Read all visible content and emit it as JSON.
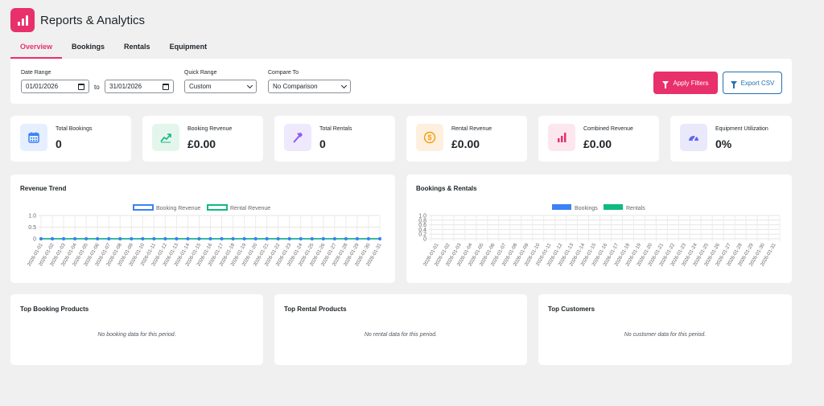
{
  "header": {
    "title": "Reports & Analytics"
  },
  "tabs": [
    "Overview",
    "Bookings",
    "Rentals",
    "Equipment"
  ],
  "filters": {
    "date_range_label": "Date Range",
    "date_from": "01/01/2026",
    "to_label": "to",
    "date_to": "31/01/2026",
    "quick_range_label": "Quick Range",
    "quick_range_value": "Custom",
    "compare_label": "Compare To",
    "compare_value": "No Comparison",
    "apply_label": "Apply Filters",
    "export_label": "Export CSV"
  },
  "stats": [
    {
      "label": "Total Bookings",
      "value": "0",
      "icon": "calendar-icon",
      "bg": "#e5efff",
      "color": "#3b82f6"
    },
    {
      "label": "Booking Revenue",
      "value": "£0.00",
      "icon": "trending-up-icon",
      "bg": "#e4f6ec",
      "color": "#10b981"
    },
    {
      "label": "Total Rentals",
      "value": "0",
      "icon": "hammer-icon",
      "bg": "#efe9fd",
      "color": "#8b5cf6"
    },
    {
      "label": "Rental Revenue",
      "value": "£0.00",
      "icon": "coin-icon",
      "bg": "#fdf0df",
      "color": "#f59e0b"
    },
    {
      "label": "Combined Revenue",
      "value": "£0.00",
      "icon": "bar-chart-icon",
      "bg": "#fde7ee",
      "color": "#e8306b"
    },
    {
      "label": "Equipment Utilization",
      "value": "0%",
      "icon": "gauge-icon",
      "bg": "#e9e9fb",
      "color": "#6366f1"
    }
  ],
  "charts": {
    "revenue_trend_title": "Revenue Trend",
    "bookings_rentals_title": "Bookings & Rentals"
  },
  "chart_data": [
    {
      "type": "line",
      "title": "Revenue Trend",
      "x": [
        "2026-01-01",
        "2026-01-02",
        "2026-01-03",
        "2026-01-04",
        "2026-01-05",
        "2026-01-06",
        "2026-01-07",
        "2026-01-08",
        "2026-01-09",
        "2026-01-10",
        "2026-01-11",
        "2026-01-12",
        "2026-01-13",
        "2026-01-14",
        "2026-01-15",
        "2026-01-16",
        "2026-01-17",
        "2026-01-18",
        "2026-01-19",
        "2026-01-20",
        "2026-01-21",
        "2026-01-22",
        "2026-01-23",
        "2026-01-24",
        "2026-01-25",
        "2026-01-26",
        "2026-01-27",
        "2026-01-28",
        "2026-01-29",
        "2026-01-30",
        "2026-01-31"
      ],
      "series": [
        {
          "name": "Booking Revenue",
          "color": "#3b82f6",
          "values": [
            0,
            0,
            0,
            0,
            0,
            0,
            0,
            0,
            0,
            0,
            0,
            0,
            0,
            0,
            0,
            0,
            0,
            0,
            0,
            0,
            0,
            0,
            0,
            0,
            0,
            0,
            0,
            0,
            0,
            0,
            0
          ]
        },
        {
          "name": "Rental Revenue",
          "color": "#10b981",
          "values": [
            0,
            0,
            0,
            0,
            0,
            0,
            0,
            0,
            0,
            0,
            0,
            0,
            0,
            0,
            0,
            0,
            0,
            0,
            0,
            0,
            0,
            0,
            0,
            0,
            0,
            0,
            0,
            0,
            0,
            0,
            0
          ]
        }
      ],
      "y_ticks": [
        "1.0",
        "0.5",
        "0"
      ],
      "ylim": [
        0,
        1
      ],
      "legend": "top-center",
      "grid": true
    },
    {
      "type": "bar",
      "title": "Bookings & Rentals",
      "x": [
        "2026-01-01",
        "2026-01-02",
        "2026-01-03",
        "2026-01-04",
        "2026-01-05",
        "2026-01-06",
        "2026-01-07",
        "2026-01-08",
        "2026-01-09",
        "2026-01-10",
        "2026-01-11",
        "2026-01-12",
        "2026-01-13",
        "2026-01-14",
        "2026-01-15",
        "2026-01-16",
        "2026-01-17",
        "2026-01-18",
        "2026-01-19",
        "2026-01-20",
        "2026-01-21",
        "2026-01-22",
        "2026-01-23",
        "2026-01-24",
        "2026-01-25",
        "2026-01-26",
        "2026-01-27",
        "2026-01-28",
        "2026-01-29",
        "2026-01-30",
        "2026-01-31"
      ],
      "series": [
        {
          "name": "Bookings",
          "color": "#3b82f6",
          "values": [
            0,
            0,
            0,
            0,
            0,
            0,
            0,
            0,
            0,
            0,
            0,
            0,
            0,
            0,
            0,
            0,
            0,
            0,
            0,
            0,
            0,
            0,
            0,
            0,
            0,
            0,
            0,
            0,
            0,
            0,
            0
          ]
        },
        {
          "name": "Rentals",
          "color": "#10b981",
          "values": [
            0,
            0,
            0,
            0,
            0,
            0,
            0,
            0,
            0,
            0,
            0,
            0,
            0,
            0,
            0,
            0,
            0,
            0,
            0,
            0,
            0,
            0,
            0,
            0,
            0,
            0,
            0,
            0,
            0,
            0,
            0
          ]
        }
      ],
      "y_ticks": [
        "1.0",
        "0.8",
        "0.6",
        "0.4",
        "0.2",
        "0"
      ],
      "ylim": [
        0,
        1
      ],
      "legend": "top-center",
      "grid": true
    }
  ],
  "lists": [
    {
      "title": "Top Booking Products",
      "empty": "No booking data for this period."
    },
    {
      "title": "Top Rental Products",
      "empty": "No rental data for this period."
    },
    {
      "title": "Top Customers",
      "empty": "No customer data for this period."
    }
  ]
}
